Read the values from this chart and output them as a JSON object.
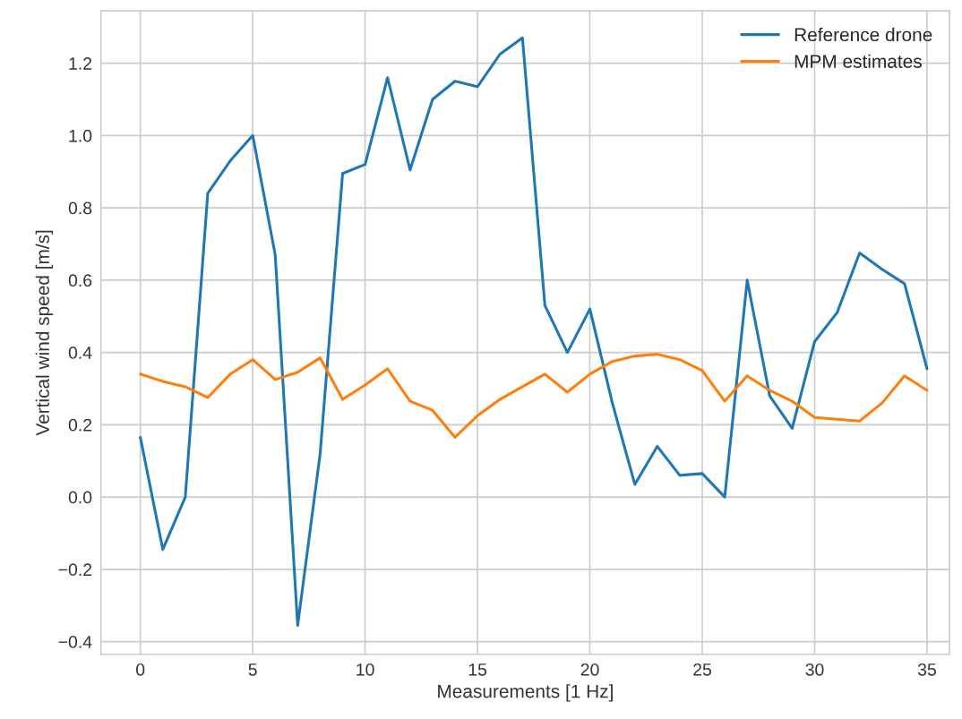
{
  "chart_data": {
    "type": "line",
    "xlabel": "Measurements [1 Hz]",
    "ylabel": "Vertical wind speed [m/s]",
    "x": [
      0,
      1,
      2,
      3,
      4,
      5,
      6,
      7,
      8,
      9,
      10,
      11,
      12,
      13,
      14,
      15,
      16,
      17,
      18,
      19,
      20,
      21,
      22,
      23,
      24,
      25,
      26,
      27,
      28,
      29,
      30,
      31,
      32,
      33,
      34,
      35
    ],
    "series": [
      {
        "name": "Reference drone",
        "color": "#1f77b4",
        "values": [
          0.165,
          -0.145,
          0.0,
          0.84,
          0.93,
          1.0,
          0.67,
          -0.355,
          0.12,
          0.895,
          0.92,
          1.16,
          0.905,
          1.1,
          1.15,
          1.135,
          1.225,
          1.27,
          0.53,
          0.4,
          0.52,
          0.26,
          0.035,
          0.14,
          0.06,
          0.065,
          0.0,
          0.6,
          0.28,
          0.19,
          0.43,
          0.51,
          0.675,
          0.63,
          0.59,
          0.355
        ]
      },
      {
        "name": "MPM estimates",
        "color": "#ff7f0e",
        "values": [
          0.34,
          0.32,
          0.305,
          0.275,
          0.34,
          0.38,
          0.325,
          0.345,
          0.385,
          0.27,
          0.31,
          0.355,
          0.265,
          0.24,
          0.165,
          0.225,
          0.27,
          0.305,
          0.34,
          0.29,
          0.34,
          0.375,
          0.39,
          0.395,
          0.38,
          0.35,
          0.265,
          0.335,
          0.295,
          0.265,
          0.22,
          0.215,
          0.21,
          0.26,
          0.335,
          0.295
        ]
      }
    ],
    "xlim": [
      -1.75,
      36.0
    ],
    "ylim": [
      -0.435,
      1.345
    ],
    "xticks": [
      0,
      5,
      10,
      15,
      20,
      25,
      30,
      35
    ],
    "yticks": [
      {
        "value": -0.4,
        "label": "−0.4"
      },
      {
        "value": -0.2,
        "label": "−0.2"
      },
      {
        "value": 0,
        "label": "0.0"
      },
      {
        "value": 0.2,
        "label": "0.2"
      },
      {
        "value": 0.4,
        "label": "0.4"
      },
      {
        "value": 0.6,
        "label": "0.6"
      },
      {
        "value": 0.8,
        "label": "0.8"
      },
      {
        "value": 1.0,
        "label": "1.0"
      },
      {
        "value": 1.2,
        "label": "1.2"
      }
    ],
    "grid": true,
    "legend": "top right",
    "marker": "none",
    "line_style": "solid"
  }
}
